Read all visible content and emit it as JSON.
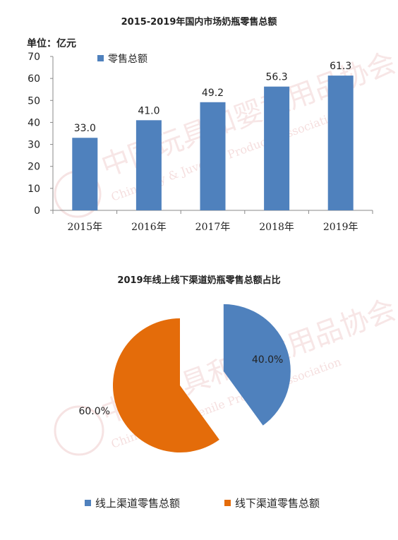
{
  "chart_data": [
    {
      "type": "bar",
      "title": "2015-2019年国内市场奶瓶零售总额",
      "unit_label": "单位：亿元",
      "categories": [
        "2015年",
        "2016年",
        "2017年",
        "2018年",
        "2019年"
      ],
      "series": [
        {
          "name": "零售总额",
          "values": [
            33.0,
            41.0,
            49.2,
            56.3,
            61.3
          ],
          "labels": [
            "33.0",
            "41.0",
            "49.2",
            "56.3",
            "61.3"
          ]
        }
      ],
      "yticks": [
        "0",
        "10",
        "20",
        "30",
        "40",
        "50",
        "60",
        "70"
      ],
      "ylim": [
        0,
        70
      ],
      "grid": false,
      "legend": "top-left",
      "color": "#4f81bd"
    },
    {
      "type": "pie",
      "title": "2019年线上线下渠道奶瓶零售总额占比",
      "slices": [
        {
          "name": "线上渠道零售总额",
          "value": 40.0,
          "label": "40.0%",
          "color": "#4f81bd",
          "exploded": true
        },
        {
          "name": "线下渠道零售总额",
          "value": 60.0,
          "label": "60.0%",
          "color": "#e46c0a",
          "exploded": false
        }
      ],
      "legend": "bottom"
    }
  ],
  "watermark": {
    "cn": "中国玩具和婴童用品协会",
    "en": "China Toy & Juvenile Products Association"
  }
}
